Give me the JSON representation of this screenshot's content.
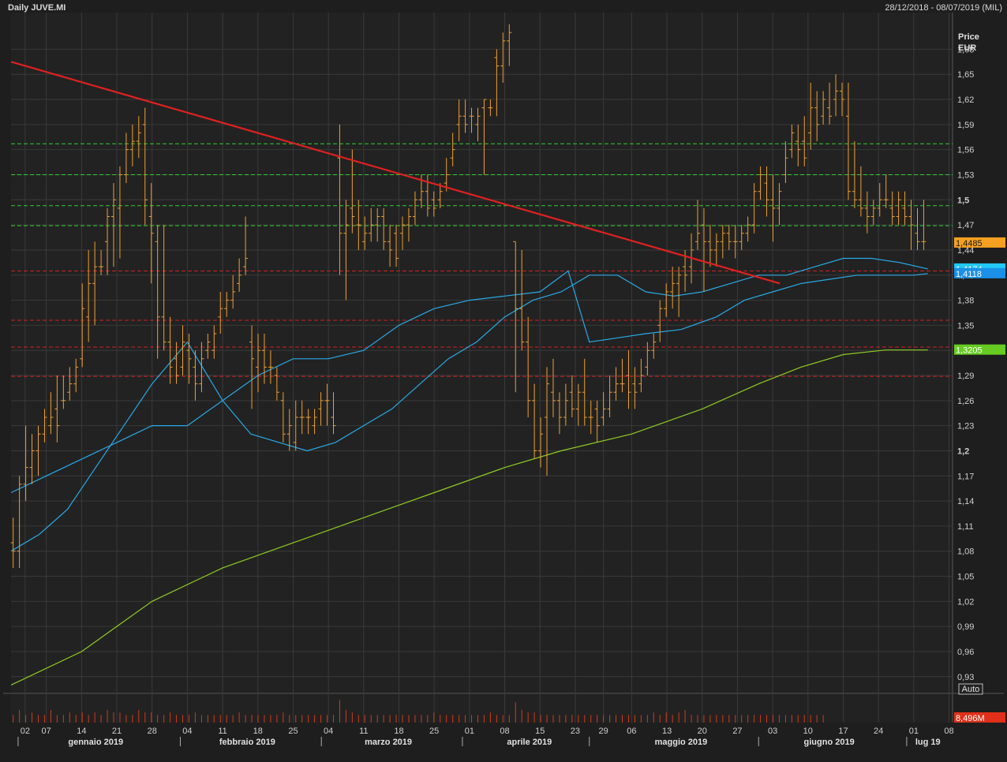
{
  "header": {
    "title": "Daily JUVE.MI",
    "range": "28/12/2018 - 08/07/2019 (MIL)"
  },
  "axis": {
    "price_label": "Price",
    "currency": "EUR",
    "auto_label": "Auto",
    "volume_label": "8,496M"
  },
  "colors": {
    "background": "#222222",
    "grid": "#3a3a3a",
    "bars": "#f0a030",
    "trendline": "#e02020",
    "green_lines": "#33cc33",
    "red_lines": "#cc2222",
    "ma_fast": "#29a9e8",
    "ma_mid": "#29a9e8",
    "ma_slow": "#8fcc22",
    "volume": "#d23a1a"
  },
  "chart_data": {
    "type": "ohlc",
    "title": "Daily JUVE.MI",
    "ylabel": "Price EUR",
    "ylim": [
      0.91,
      1.72
    ],
    "y_ticks": [
      "1,68",
      "1,65",
      "1,62",
      "1,59",
      "1,56",
      "1,53",
      "1,5",
      "1,47",
      "1,44",
      "1,41",
      "1,38",
      "1,35",
      "1,32",
      "1,29",
      "1,26",
      "1,23",
      "1,2",
      "1,17",
      "1,14",
      "1,11",
      "1,08",
      "1,05",
      "1,02",
      "0,99",
      "0,96",
      "0,93"
    ],
    "y_tick_values": [
      1.68,
      1.65,
      1.62,
      1.59,
      1.56,
      1.53,
      1.5,
      1.47,
      1.44,
      1.41,
      1.38,
      1.35,
      1.32,
      1.29,
      1.26,
      1.23,
      1.2,
      1.17,
      1.14,
      1.11,
      1.08,
      1.05,
      1.02,
      0.99,
      0.96,
      0.93
    ],
    "x_days": [
      "02",
      "07",
      "14",
      "21",
      "28",
      "04",
      "11",
      "18",
      "25",
      "04",
      "11",
      "18",
      "25",
      "01",
      "08",
      "15",
      "23",
      "29",
      "06",
      "13",
      "20",
      "27",
      "03",
      "10",
      "17",
      "24",
      "01",
      "08"
    ],
    "x_day_positions": [
      2,
      5,
      10,
      15,
      20,
      25,
      30,
      35,
      40,
      45,
      50,
      55,
      60,
      65,
      70,
      75,
      80,
      84,
      88,
      93,
      98,
      103,
      108,
      113,
      118,
      123,
      128,
      133
    ],
    "x_months": [
      "gennaio 2019",
      "febbraio 2019",
      "marzo 2019",
      "aprile 2019",
      "maggio 2019",
      "giugno 2019",
      "lug 19"
    ],
    "x_month_positions": [
      12,
      33.5,
      53.5,
      73.5,
      95,
      116,
      130
    ],
    "x_month_separators": [
      1,
      24,
      44,
      64,
      82,
      106,
      127
    ],
    "x_max": 133.5,
    "last_prices": [
      {
        "value": 1.4485,
        "label": "1,4485",
        "color": "#f5a020"
      },
      {
        "value": 1.4174,
        "label": "1,4174",
        "color": "#20c8f8"
      },
      {
        "value": 1.4118,
        "label": "1,4118",
        "color": "#1a90e8"
      },
      {
        "value": 1.3205,
        "label": "1,3205",
        "color": "#66cc22"
      }
    ],
    "h_lines_green": [
      1.567,
      1.53,
      1.493,
      1.469
    ],
    "h_lines_red": [
      1.415,
      1.356,
      1.324,
      1.289
    ],
    "trendline": {
      "x1": 0,
      "y1": 1.665,
      "x2": 109,
      "y2": 1.4
    },
    "bars": [
      [
        1.09,
        1.12,
        1.06,
        1.08
      ],
      [
        1.08,
        1.17,
        1.06,
        1.16
      ],
      [
        1.16,
        1.23,
        1.14,
        1.18
      ],
      [
        1.18,
        1.22,
        1.16,
        1.2
      ],
      [
        1.2,
        1.23,
        1.17,
        1.22
      ],
      [
        1.22,
        1.25,
        1.21,
        1.24
      ],
      [
        1.23,
        1.27,
        1.22,
        1.24
      ],
      [
        1.25,
        1.29,
        1.21,
        1.23
      ],
      [
        1.26,
        1.29,
        1.25,
        1.26
      ],
      [
        1.27,
        1.3,
        1.26,
        1.28
      ],
      [
        1.28,
        1.31,
        1.27,
        1.3
      ],
      [
        1.31,
        1.4,
        1.3,
        1.37
      ],
      [
        1.36,
        1.44,
        1.33,
        1.4
      ],
      [
        1.4,
        1.45,
        1.35,
        1.42
      ],
      [
        1.42,
        1.44,
        1.41,
        1.42
      ],
      [
        1.45,
        1.49,
        1.41,
        1.48
      ],
      [
        1.48,
        1.52,
        1.42,
        1.5
      ],
      [
        1.49,
        1.54,
        1.43,
        1.53
      ],
      [
        1.53,
        1.58,
        1.52,
        1.56
      ],
      [
        1.56,
        1.59,
        1.54,
        1.57
      ],
      [
        1.57,
        1.6,
        1.55,
        1.58
      ],
      [
        1.59,
        1.61,
        1.47,
        1.5
      ],
      [
        1.48,
        1.52,
        1.4,
        1.46
      ],
      [
        1.45,
        1.47,
        1.31,
        1.36
      ],
      [
        1.36,
        1.47,
        1.32,
        1.33
      ],
      [
        1.33,
        1.36,
        1.28,
        1.3
      ],
      [
        1.31,
        1.33,
        1.28,
        1.29
      ],
      [
        1.3,
        1.35,
        1.29,
        1.33
      ],
      [
        1.32,
        1.34,
        1.28,
        1.31
      ],
      [
        1.3,
        1.32,
        1.26,
        1.28
      ],
      [
        1.28,
        1.33,
        1.27,
        1.31
      ],
      [
        1.32,
        1.34,
        1.31,
        1.33
      ],
      [
        1.32,
        1.35,
        1.31,
        1.34
      ],
      [
        1.36,
        1.39,
        1.34,
        1.37
      ],
      [
        1.37,
        1.39,
        1.36,
        1.38
      ],
      [
        1.38,
        1.41,
        1.37,
        1.39
      ],
      [
        1.4,
        1.43,
        1.39,
        1.41
      ],
      [
        1.42,
        1.48,
        1.41,
        1.43
      ],
      [
        1.33,
        1.35,
        1.25,
        1.31
      ],
      [
        1.3,
        1.34,
        1.27,
        1.32
      ],
      [
        1.32,
        1.34,
        1.28,
        1.3
      ],
      [
        1.3,
        1.32,
        1.28,
        1.3
      ],
      [
        1.29,
        1.3,
        1.26,
        1.27
      ],
      [
        1.26,
        1.27,
        1.21,
        1.22
      ],
      [
        1.22,
        1.25,
        1.2,
        1.23
      ],
      [
        1.21,
        1.26,
        1.2,
        1.24
      ],
      [
        1.24,
        1.26,
        1.22,
        1.24
      ],
      [
        1.24,
        1.25,
        1.22,
        1.24
      ],
      [
        1.23,
        1.25,
        1.22,
        1.24
      ],
      [
        1.25,
        1.27,
        1.23,
        1.26
      ],
      [
        1.26,
        1.28,
        1.23,
        1.26
      ],
      [
        1.24,
        1.27,
        1.22,
        1.23
      ],
      [
        1.55,
        1.59,
        1.41,
        1.46
      ],
      [
        1.46,
        1.5,
        1.38,
        1.47
      ],
      [
        1.49,
        1.56,
        1.46,
        1.48
      ],
      [
        1.47,
        1.5,
        1.44,
        1.47
      ],
      [
        1.45,
        1.48,
        1.44,
        1.46
      ],
      [
        1.46,
        1.49,
        1.45,
        1.47
      ],
      [
        1.47,
        1.49,
        1.45,
        1.48
      ],
      [
        1.48,
        1.49,
        1.44,
        1.45
      ],
      [
        1.45,
        1.47,
        1.42,
        1.44
      ],
      [
        1.46,
        1.47,
        1.42,
        1.43
      ],
      [
        1.46,
        1.48,
        1.44,
        1.47
      ],
      [
        1.47,
        1.49,
        1.45,
        1.48
      ],
      [
        1.48,
        1.51,
        1.47,
        1.5
      ],
      [
        1.5,
        1.53,
        1.49,
        1.51
      ],
      [
        1.51,
        1.53,
        1.48,
        1.49
      ],
      [
        1.5,
        1.51,
        1.48,
        1.49
      ],
      [
        1.5,
        1.52,
        1.49,
        1.51
      ],
      [
        1.52,
        1.55,
        1.51,
        1.53
      ],
      [
        1.55,
        1.58,
        1.54,
        1.56
      ],
      [
        1.59,
        1.62,
        1.57,
        1.6
      ],
      [
        1.6,
        1.62,
        1.58,
        1.59
      ],
      [
        1.6,
        1.61,
        1.58,
        1.6
      ],
      [
        1.59,
        1.61,
        1.57,
        1.6
      ],
      [
        1.61,
        1.62,
        1.53,
        1.62
      ],
      [
        1.61,
        1.62,
        1.6,
        1.61
      ],
      [
        1.67,
        1.68,
        1.6,
        1.66
      ],
      [
        1.66,
        1.7,
        1.64,
        1.69
      ],
      [
        1.69,
        1.71,
        1.66,
        1.7
      ],
      [
        1.45,
        1.45,
        1.27,
        1.37
      ],
      [
        1.37,
        1.44,
        1.32,
        1.33
      ],
      [
        1.33,
        1.36,
        1.24,
        1.26
      ],
      [
        1.26,
        1.28,
        1.19,
        1.2
      ],
      [
        1.2,
        1.24,
        1.18,
        1.22
      ],
      [
        1.24,
        1.3,
        1.17,
        1.28
      ],
      [
        1.27,
        1.31,
        1.24,
        1.26
      ],
      [
        1.26,
        1.27,
        1.22,
        1.24
      ],
      [
        1.24,
        1.28,
        1.23,
        1.26
      ],
      [
        1.27,
        1.29,
        1.24,
        1.25
      ],
      [
        1.25,
        1.28,
        1.23,
        1.27
      ],
      [
        1.27,
        1.31,
        1.23,
        1.24
      ],
      [
        1.24,
        1.26,
        1.22,
        1.24
      ],
      [
        1.25,
        1.26,
        1.21,
        1.23
      ],
      [
        1.24,
        1.27,
        1.23,
        1.25
      ],
      [
        1.25,
        1.29,
        1.24,
        1.27
      ],
      [
        1.27,
        1.3,
        1.26,
        1.28
      ],
      [
        1.28,
        1.31,
        1.27,
        1.28
      ],
      [
        1.29,
        1.32,
        1.25,
        1.27
      ],
      [
        1.28,
        1.3,
        1.25,
        1.27
      ],
      [
        1.28,
        1.31,
        1.27,
        1.29
      ],
      [
        1.3,
        1.33,
        1.29,
        1.32
      ],
      [
        1.32,
        1.34,
        1.31,
        1.33
      ],
      [
        1.35,
        1.38,
        1.33,
        1.37
      ],
      [
        1.37,
        1.4,
        1.36,
        1.39
      ],
      [
        1.39,
        1.42,
        1.37,
        1.4
      ],
      [
        1.4,
        1.42,
        1.36,
        1.41
      ],
      [
        1.42,
        1.44,
        1.39,
        1.41
      ],
      [
        1.42,
        1.46,
        1.4,
        1.44
      ],
      [
        1.45,
        1.5,
        1.44,
        1.46
      ],
      [
        1.47,
        1.49,
        1.39,
        1.45
      ],
      [
        1.45,
        1.47,
        1.42,
        1.44
      ],
      [
        1.44,
        1.46,
        1.42,
        1.45
      ],
      [
        1.45,
        1.47,
        1.43,
        1.46
      ],
      [
        1.46,
        1.47,
        1.44,
        1.45
      ],
      [
        1.45,
        1.47,
        1.43,
        1.45
      ]
    ],
    "bars_tail": [
      [
        1.45,
        1.47,
        1.44,
        1.46
      ],
      [
        1.46,
        1.48,
        1.45,
        1.47
      ],
      [
        1.47,
        1.52,
        1.46,
        1.51
      ],
      [
        1.51,
        1.54,
        1.5,
        1.53
      ],
      [
        1.52,
        1.54,
        1.48,
        1.5
      ],
      [
        1.5,
        1.53,
        1.45,
        1.49
      ],
      [
        1.49,
        1.52,
        1.47,
        1.51
      ],
      [
        1.53,
        1.57,
        1.52,
        1.55
      ],
      [
        1.56,
        1.59,
        1.55,
        1.58
      ],
      [
        1.57,
        1.59,
        1.54,
        1.56
      ],
      [
        1.57,
        1.6,
        1.54,
        1.55
      ],
      [
        1.58,
        1.64,
        1.56,
        1.61
      ],
      [
        1.61,
        1.63,
        1.57,
        1.59
      ],
      [
        1.6,
        1.63,
        1.59,
        1.62
      ],
      [
        1.61,
        1.64,
        1.59,
        1.6
      ],
      [
        1.62,
        1.65,
        1.6,
        1.63
      ],
      [
        1.63,
        1.64,
        1.6,
        1.62
      ],
      [
        1.6,
        1.64,
        1.5,
        1.51
      ],
      [
        1.51,
        1.57,
        1.49,
        1.5
      ],
      [
        1.5,
        1.54,
        1.48,
        1.49
      ],
      [
        1.49,
        1.51,
        1.46,
        1.48
      ],
      [
        1.48,
        1.5,
        1.47,
        1.49
      ],
      [
        1.49,
        1.52,
        1.48,
        1.5
      ],
      [
        1.5,
        1.53,
        1.49,
        1.5
      ],
      [
        1.49,
        1.51,
        1.47,
        1.48
      ],
      [
        1.48,
        1.51,
        1.47,
        1.5
      ],
      [
        1.49,
        1.51,
        1.47,
        1.48
      ],
      [
        1.48,
        1.5,
        1.44,
        1.47
      ],
      [
        1.46,
        1.49,
        1.44,
        1.45
      ],
      [
        1.45,
        1.5,
        1.44,
        1.45
      ]
    ],
    "ma_fast_points": [
      [
        0,
        1.08
      ],
      [
        4,
        1.1
      ],
      [
        8,
        1.13
      ],
      [
        12,
        1.18
      ],
      [
        16,
        1.23
      ],
      [
        20,
        1.28
      ],
      [
        25,
        1.33
      ],
      [
        30,
        1.26
      ],
      [
        34,
        1.22
      ],
      [
        38,
        1.21
      ],
      [
        42,
        1.2
      ],
      [
        46,
        1.21
      ],
      [
        50,
        1.23
      ],
      [
        54,
        1.25
      ],
      [
        58,
        1.28
      ],
      [
        62,
        1.31
      ],
      [
        66,
        1.33
      ],
      [
        70,
        1.36
      ],
      [
        74,
        1.38
      ],
      [
        78,
        1.39
      ],
      [
        82,
        1.41
      ],
      [
        86,
        1.41
      ],
      [
        90,
        1.39
      ],
      [
        94,
        1.385
      ],
      [
        98,
        1.39
      ],
      [
        102,
        1.4
      ],
      [
        106,
        1.41
      ],
      [
        110,
        1.41
      ],
      [
        114,
        1.42
      ],
      [
        118,
        1.43
      ],
      [
        122,
        1.43
      ],
      [
        126,
        1.425
      ],
      [
        130,
        1.4174
      ]
    ],
    "ma_mid_points": [
      [
        0,
        1.15
      ],
      [
        5,
        1.17
      ],
      [
        10,
        1.19
      ],
      [
        15,
        1.21
      ],
      [
        20,
        1.23
      ],
      [
        25,
        1.23
      ],
      [
        30,
        1.26
      ],
      [
        35,
        1.29
      ],
      [
        40,
        1.31
      ],
      [
        45,
        1.31
      ],
      [
        50,
        1.32
      ],
      [
        55,
        1.35
      ],
      [
        60,
        1.37
      ],
      [
        65,
        1.38
      ],
      [
        70,
        1.385
      ],
      [
        75,
        1.39
      ],
      [
        79,
        1.415
      ],
      [
        82,
        1.33
      ],
      [
        86,
        1.335
      ],
      [
        90,
        1.34
      ],
      [
        95,
        1.345
      ],
      [
        100,
        1.36
      ],
      [
        104,
        1.38
      ],
      [
        108,
        1.39
      ],
      [
        112,
        1.4
      ],
      [
        116,
        1.405
      ],
      [
        120,
        1.41
      ],
      [
        124,
        1.41
      ],
      [
        128,
        1.41
      ],
      [
        130,
        1.4118
      ]
    ],
    "ma_slow_points": [
      [
        0,
        0.92
      ],
      [
        10,
        0.96
      ],
      [
        20,
        1.02
      ],
      [
        30,
        1.06
      ],
      [
        40,
        1.09
      ],
      [
        50,
        1.12
      ],
      [
        60,
        1.15
      ],
      [
        70,
        1.18
      ],
      [
        78,
        1.2
      ],
      [
        88,
        1.22
      ],
      [
        98,
        1.25
      ],
      [
        106,
        1.28
      ],
      [
        112,
        1.3
      ],
      [
        118,
        1.315
      ],
      [
        124,
        1.3205
      ],
      [
        130,
        1.3205
      ]
    ],
    "volume_values": [
      3,
      5,
      3,
      4,
      3,
      3,
      5,
      3,
      3,
      4,
      3,
      4,
      3,
      4,
      3,
      5,
      4,
      4,
      3,
      3,
      5,
      4,
      4,
      3,
      3,
      4,
      3,
      3,
      3,
      4,
      3,
      3,
      3,
      3,
      3,
      3,
      4,
      3,
      3,
      3,
      3,
      3,
      3,
      4,
      3,
      3,
      3,
      3,
      3,
      3,
      3,
      3,
      9,
      5,
      4,
      3,
      3,
      3,
      3,
      3,
      3,
      3,
      3,
      3,
      3,
      3,
      3,
      4,
      3,
      3,
      3,
      3,
      3,
      3,
      3,
      3,
      4,
      3,
      3,
      3,
      8,
      5,
      4,
      4,
      3,
      3,
      3,
      3,
      3,
      3,
      3,
      3,
      3,
      3,
      3,
      3,
      3,
      3,
      3,
      3,
      3,
      3,
      4,
      3,
      4,
      3,
      4,
      5,
      3,
      3,
      3,
      3,
      3,
      3,
      3,
      3,
      3,
      3,
      3,
      3,
      3,
      3,
      3,
      3,
      3,
      3,
      3,
      3,
      3,
      3
    ]
  }
}
